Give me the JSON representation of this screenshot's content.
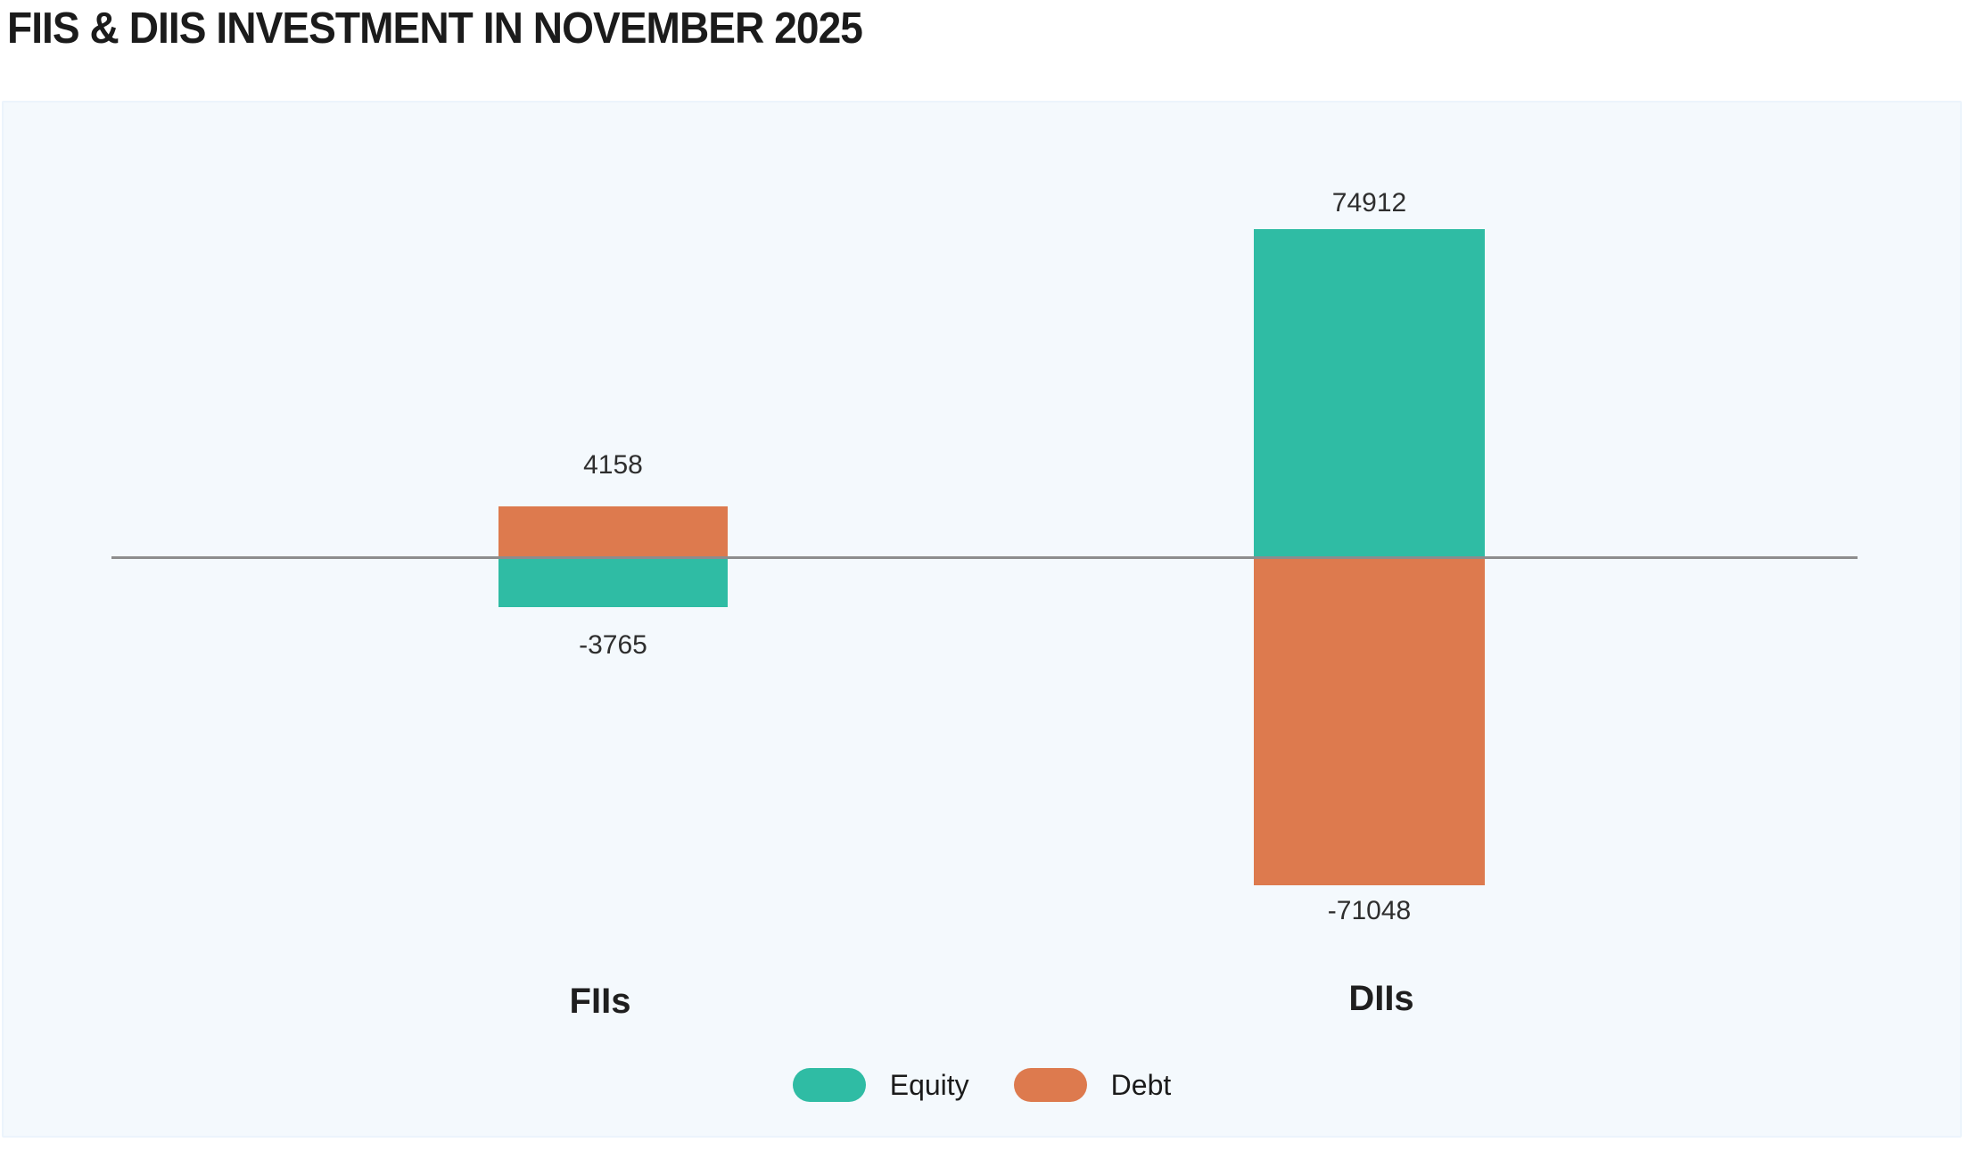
{
  "title": "FIIS & DIIS INVESTMENT IN NOVEMBER 2025",
  "chart_data": {
    "type": "bar",
    "title": "FIIS & DIIS INVESTMENT IN NOVEMBER 2025",
    "categories": [
      "FIIs",
      "DIIs"
    ],
    "series": [
      {
        "name": "Equity",
        "color": "#2fbca4",
        "values": [
          -3765,
          74912
        ]
      },
      {
        "name": "Debt",
        "color": "#dd7a4e",
        "values": [
          4158,
          -71048
        ]
      }
    ],
    "baseline": 0,
    "grid": false,
    "value_labels": true,
    "legend_position": "bottom",
    "note_scale": "bar heights not strictly linear; small FIIs bars drawn enlarged for visibility"
  },
  "colors": {
    "equity": "#2fbca4",
    "debt": "#dd7a4e",
    "panel_background": "#f4f9fd",
    "axis_line": "#8d8d8d",
    "title_text": "#1b1b1b"
  }
}
